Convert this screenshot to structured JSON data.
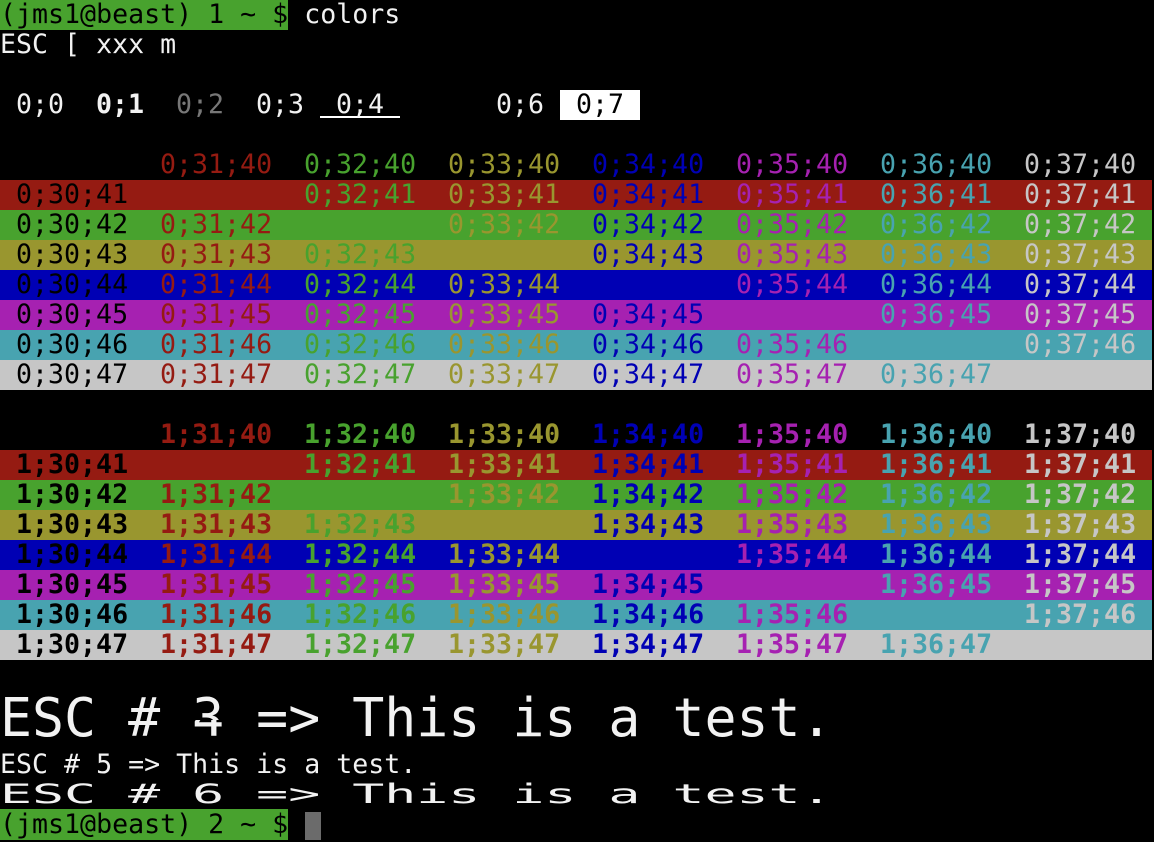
{
  "prompt1": {
    "prompt": "(jms1@beast) 1 ~ $",
    "command": "colors"
  },
  "header_line": "ESC [ xxx m",
  "attributes": [
    {
      "label": "0;0",
      "style": "normal"
    },
    {
      "label": "0;1",
      "style": "bold"
    },
    {
      "label": "0;2",
      "style": "dim"
    },
    {
      "label": "0;3",
      "style": "normal"
    },
    {
      "label": "0;4",
      "style": "underline"
    },
    {
      "label": "",
      "style": "blink"
    },
    {
      "label": "0;6",
      "style": "normal"
    },
    {
      "label": "0;7",
      "style": "reverse"
    }
  ],
  "colors": {
    "30": "#000000",
    "31": "#951b12",
    "32": "#48a22e",
    "33": "#99962f",
    "34": "#0000b4",
    "35": "#a621b1",
    "36": "#48a3b0",
    "37": "#c6c6c6",
    "40": "#000000",
    "41": "#951b12",
    "42": "#48a22e",
    "43": "#99962f",
    "44": "#0000b4",
    "45": "#a621b1",
    "46": "#48a3b0",
    "47": "#c6c6c6",
    "dim": "#777777",
    "cursor": "#6b6b6b"
  },
  "tables": [
    {
      "bold": false,
      "rows": [
        {
          "bg": "40",
          "cells": [
            "",
            "0;31;40",
            "0;32;40",
            "0;33;40",
            "0;34;40",
            "0;35;40",
            "0;36;40",
            "0;37;40"
          ]
        },
        {
          "bg": "41",
          "cells": [
            "0;30;41",
            "",
            "0;32;41",
            "0;33;41",
            "0;34;41",
            "0;35;41",
            "0;36;41",
            "0;37;41"
          ]
        },
        {
          "bg": "42",
          "cells": [
            "0;30;42",
            "0;31;42",
            "",
            "0;33;42",
            "0;34;42",
            "0;35;42",
            "0;36;42",
            "0;37;42"
          ]
        },
        {
          "bg": "43",
          "cells": [
            "0;30;43",
            "0;31;43",
            "0;32;43",
            "",
            "0;34;43",
            "0;35;43",
            "0;36;43",
            "0;37;43"
          ]
        },
        {
          "bg": "44",
          "cells": [
            "0;30;44",
            "0;31;44",
            "0;32;44",
            "0;33;44",
            "",
            "0;35;44",
            "0;36;44",
            "0;37;44"
          ]
        },
        {
          "bg": "45",
          "cells": [
            "0;30;45",
            "0;31;45",
            "0;32;45",
            "0;33;45",
            "0;34;45",
            "",
            "0;36;45",
            "0;37;45"
          ]
        },
        {
          "bg": "46",
          "cells": [
            "0;30;46",
            "0;31;46",
            "0;32;46",
            "0;33;46",
            "0;34;46",
            "0;35;46",
            "",
            "0;37;46"
          ]
        },
        {
          "bg": "47",
          "cells": [
            "0;30;47",
            "0;31;47",
            "0;32;47",
            "0;33;47",
            "0;34;47",
            "0;35;47",
            "0;36;47",
            ""
          ]
        }
      ]
    },
    {
      "bold": true,
      "rows": [
        {
          "bg": "40",
          "cells": [
            "",
            "1;31;40",
            "1;32;40",
            "1;33;40",
            "1;34;40",
            "1;35;40",
            "1;36;40",
            "1;37;40"
          ]
        },
        {
          "bg": "41",
          "cells": [
            "1;30;41",
            "",
            "1;32;41",
            "1;33;41",
            "1;34;41",
            "1;35;41",
            "1;36;41",
            "1;37;41"
          ]
        },
        {
          "bg": "42",
          "cells": [
            "1;30;42",
            "1;31;42",
            "",
            "1;33;42",
            "1;34;42",
            "1;35;42",
            "1;36;42",
            "1;37;42"
          ]
        },
        {
          "bg": "43",
          "cells": [
            "1;30;43",
            "1;31;43",
            "1;32;43",
            "",
            "1;34;43",
            "1;35;43",
            "1;36;43",
            "1;37;43"
          ]
        },
        {
          "bg": "44",
          "cells": [
            "1;30;44",
            "1;31;44",
            "1;32;44",
            "1;33;44",
            "",
            "1;35;44",
            "1;36;44",
            "1;37;44"
          ]
        },
        {
          "bg": "45",
          "cells": [
            "1;30;45",
            "1;31;45",
            "1;32;45",
            "1;33;45",
            "1;34;45",
            "",
            "1;36;45",
            "1;37;45"
          ]
        },
        {
          "bg": "46",
          "cells": [
            "1;30;46",
            "1;31;46",
            "1;32;46",
            "1;33;46",
            "1;34;46",
            "1;35;46",
            "",
            "1;37;46"
          ]
        },
        {
          "bg": "47",
          "cells": [
            "1;30;47",
            "1;31;47",
            "1;32;47",
            "1;33;47",
            "1;34;47",
            "1;35;47",
            "1;36;47",
            ""
          ]
        }
      ]
    }
  ],
  "dec_tests": {
    "double_height_top": "ESC # 3 => This is a test.",
    "double_height_bottom": "ESC # 4 => This is a test.",
    "single": "ESC # 5 => This is a test.",
    "double_width": "ESC # 6 => This is a test."
  },
  "prompt2": {
    "prompt": "(jms1@beast) 2 ~ $"
  }
}
